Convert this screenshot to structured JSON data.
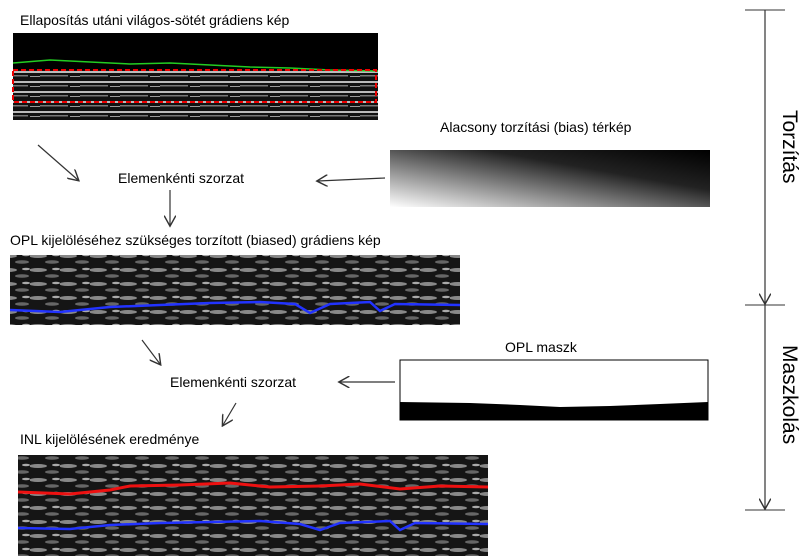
{
  "nodes": [
    {
      "label": "Ellaposítás utáni világos-sötét grádiens kép"
    },
    {
      "label": "Alacsony torzítási (bias) térkép"
    },
    {
      "label": "Elemenkénti szorzat"
    },
    {
      "label": "OPL kijelöléséhez szükséges torzított (biased) grádiens kép"
    },
    {
      "label": "OPL maszk"
    },
    {
      "label": "Elemenkénti szorzat"
    },
    {
      "label": "INL kijelölésének eredménye"
    }
  ],
  "stages": [
    {
      "label": "Torzítás"
    },
    {
      "label": "Maszkolás"
    }
  ]
}
